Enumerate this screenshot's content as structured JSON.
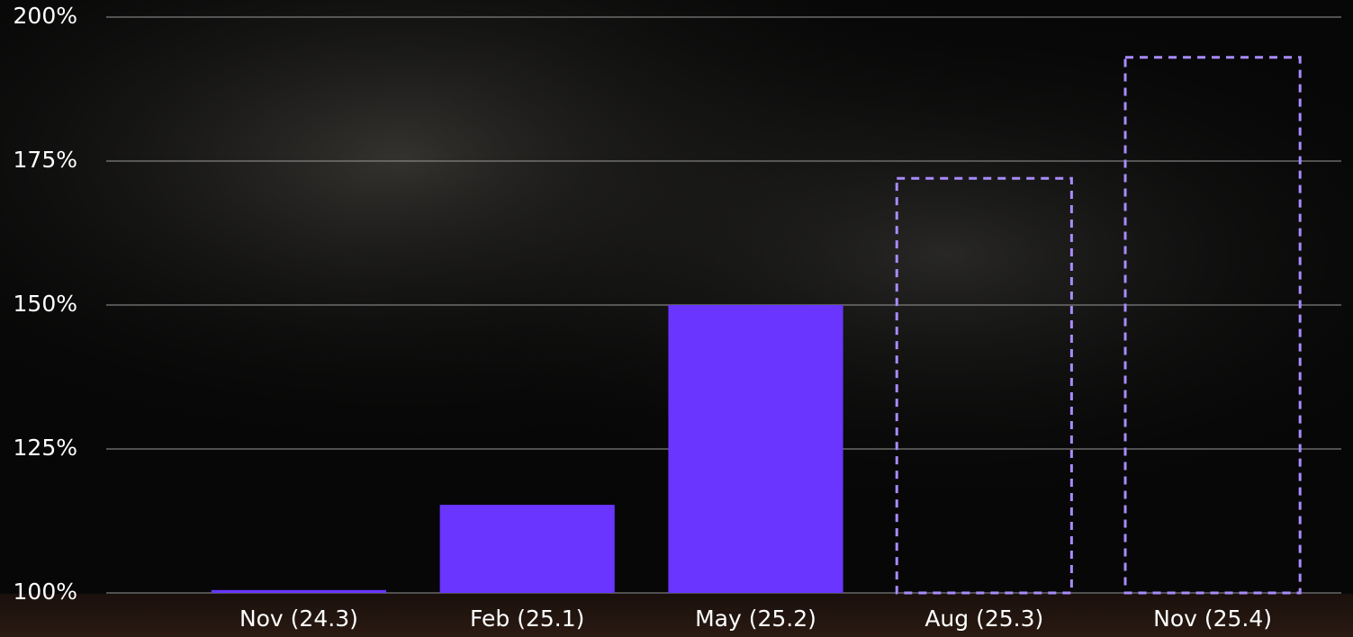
{
  "chart_data": {
    "type": "bar",
    "categories": [
      "Nov (24.3)",
      "Feb (25.1)",
      "May (25.2)",
      "Aug (25.3)",
      "Nov (25.4)"
    ],
    "series": [
      {
        "color": "#6a35ff",
        "dashed": false,
        "values": [
          100.5,
          115.3,
          150,
          null,
          null
        ]
      },
      {
        "color": "#a98bff",
        "dashed": true,
        "values": [
          null,
          null,
          null,
          172,
          193
        ]
      }
    ],
    "ylim": [
      100,
      200
    ],
    "yticks": [
      {
        "value": 100,
        "label": "100%"
      },
      {
        "value": 125,
        "label": "125%"
      },
      {
        "value": 150,
        "label": "150%"
      },
      {
        "value": 175,
        "label": "175%"
      },
      {
        "value": 200,
        "label": "200%"
      }
    ],
    "grid": true
  }
}
